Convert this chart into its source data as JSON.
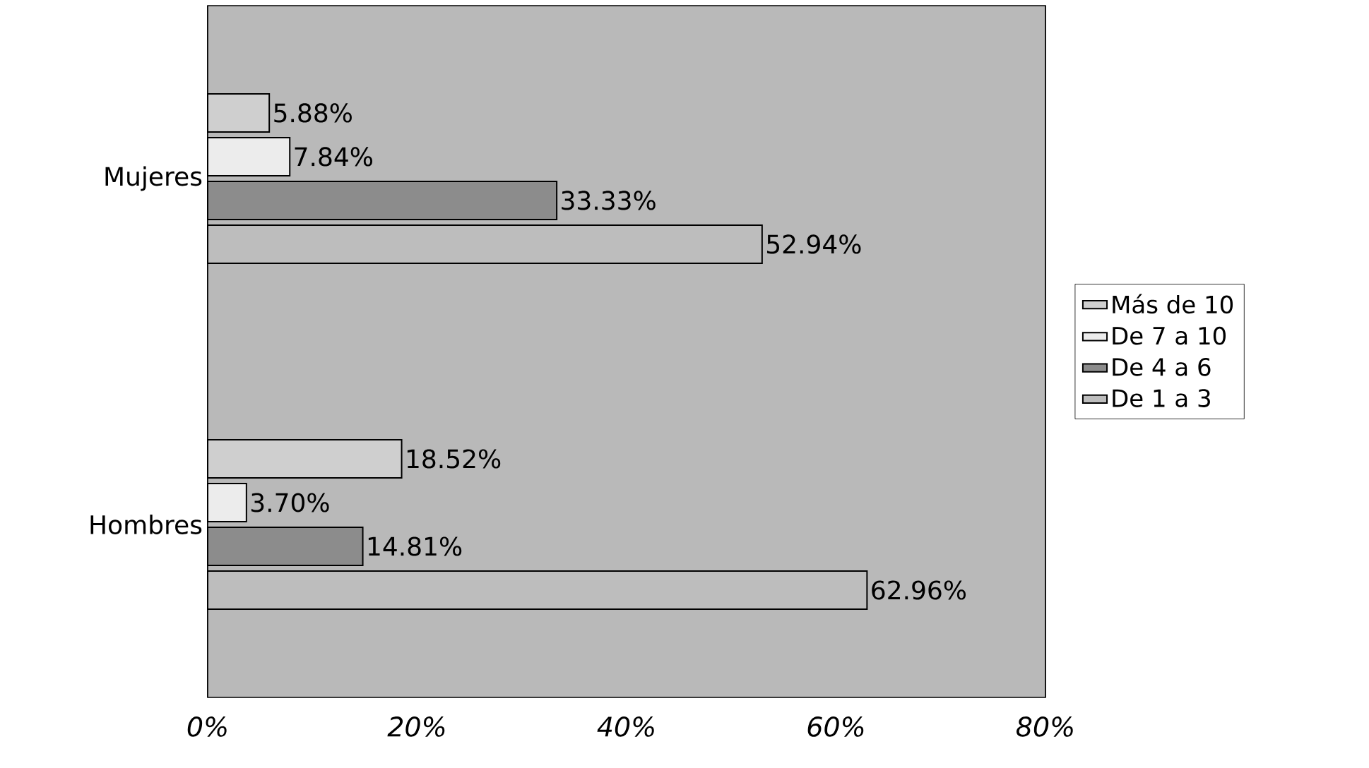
{
  "chart_data": {
    "type": "bar",
    "orientation": "horizontal",
    "categories": [
      "Mujeres",
      "Hombres"
    ],
    "series": [
      {
        "name": "Más de 10",
        "color": "#cfcfcf",
        "values": [
          5.88,
          18.52
        ],
        "value_labels": [
          "5.88%",
          "18.52%"
        ]
      },
      {
        "name": "De 7 a 10",
        "color": "#ececec",
        "values": [
          7.84,
          3.7
        ],
        "value_labels": [
          "7.84%",
          "3.70%"
        ]
      },
      {
        "name": "De 4 a 6",
        "color": "#8c8c8c",
        "values": [
          33.33,
          14.81
        ],
        "value_labels": [
          "33.33%",
          "14.81%"
        ]
      },
      {
        "name": "De 1 a 3",
        "color": "#bdbdbd",
        "values": [
          52.94,
          62.96
        ],
        "value_labels": [
          "52.94%",
          "62.96%"
        ]
      }
    ],
    "xlim": [
      0,
      80
    ],
    "xticks": [
      {
        "value": 0,
        "label": "0%"
      },
      {
        "value": 20,
        "label": "20%"
      },
      {
        "value": 40,
        "label": "40%"
      },
      {
        "value": 60,
        "label": "60%"
      },
      {
        "value": 80,
        "label": "80%"
      }
    ],
    "grid": "x",
    "legend": "right"
  }
}
